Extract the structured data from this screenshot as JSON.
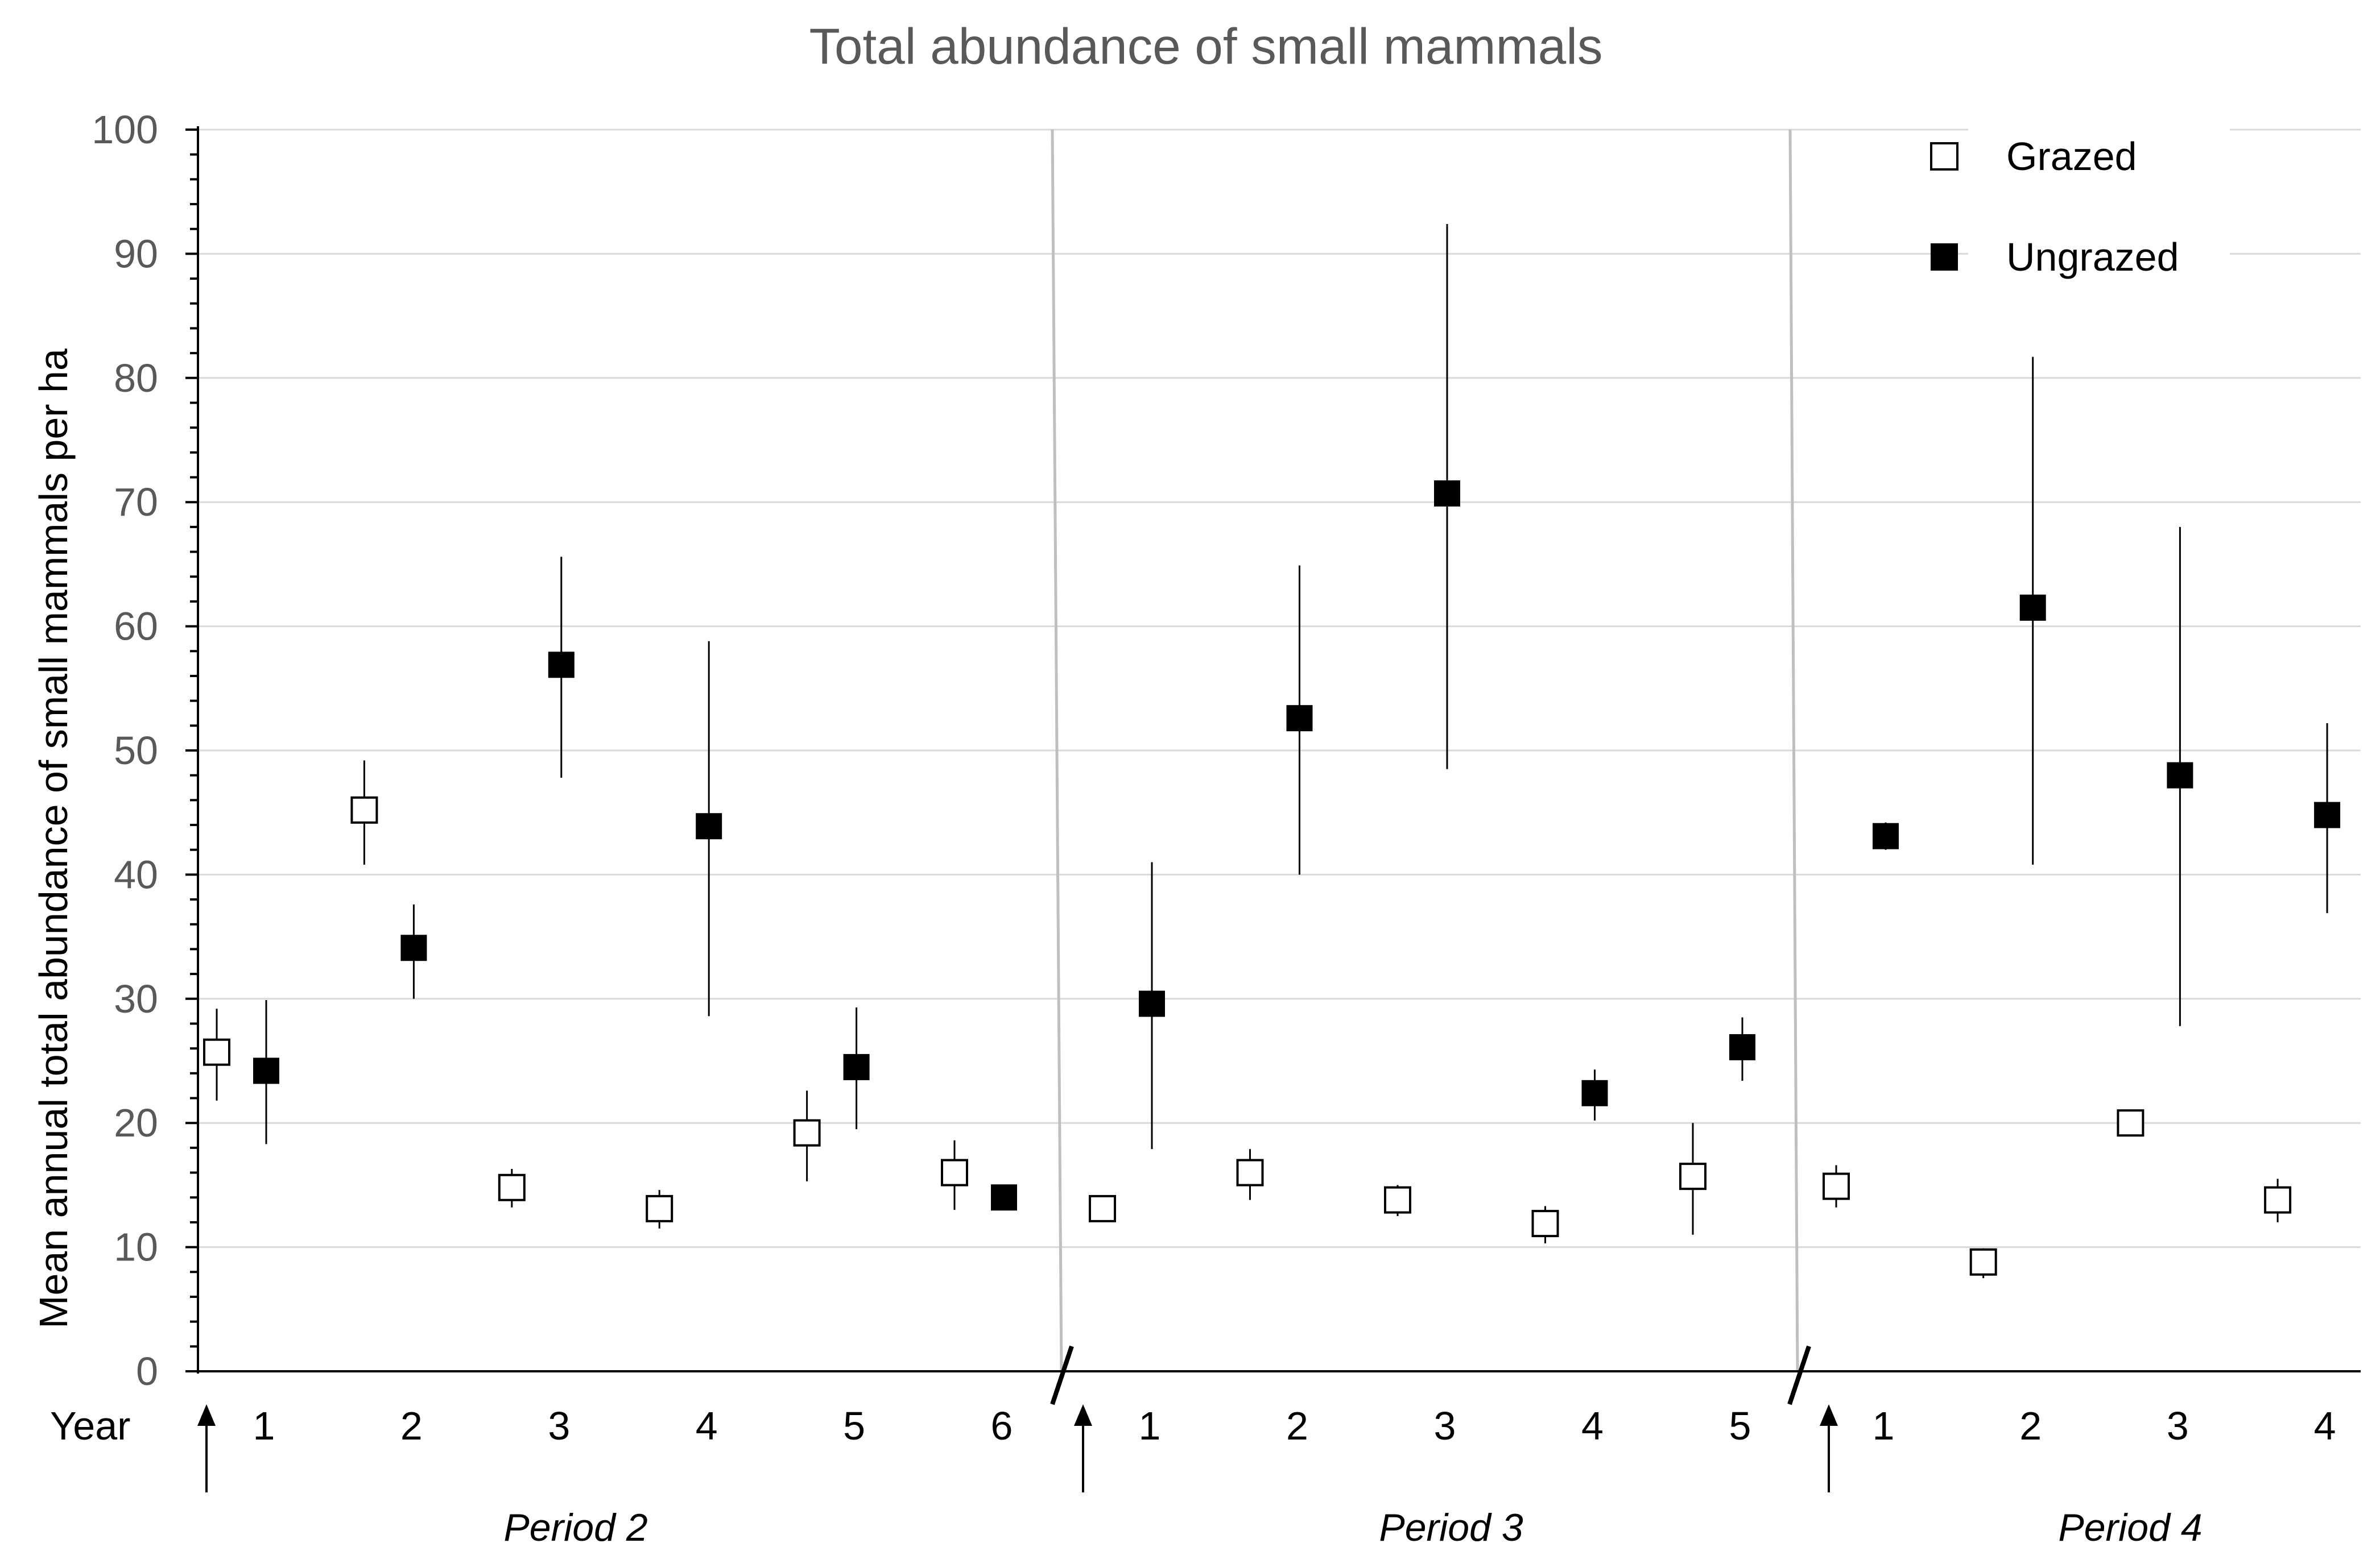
{
  "chart_data": {
    "type": "scatter",
    "title": "Total abundance of small mammals",
    "ylabel": "Mean annual total abundance of small mammals per ha",
    "xlabel": "",
    "year_caption": "Year",
    "ylim": [
      0,
      100
    ],
    "yticks": [
      0,
      10,
      20,
      30,
      40,
      50,
      60,
      70,
      80,
      90,
      100
    ],
    "grid": true,
    "legend_position": "top-right",
    "colors": {
      "grazed_fill": "#ffffff",
      "ungrazed_fill": "#000000",
      "gridline": "#d9d9d9",
      "divider": "#bfbfbf"
    },
    "periods": [
      {
        "label": "Period 2",
        "years": [
          "1",
          "2",
          "3",
          "4",
          "5",
          "6"
        ]
      },
      {
        "label": "Period 3",
        "years": [
          "1",
          "2",
          "3",
          "4",
          "5"
        ]
      },
      {
        "label": "Period 4",
        "years": [
          "1",
          "2",
          "3",
          "4"
        ]
      }
    ],
    "series": [
      {
        "name": "Grazed",
        "marker": "open-square",
        "points": [
          {
            "period": 0,
            "year": 1,
            "y": 25.7,
            "low": 21.8,
            "high": 29.2
          },
          {
            "period": 0,
            "year": 2,
            "y": 45.2,
            "low": 40.8,
            "high": 49.2
          },
          {
            "period": 0,
            "year": 3,
            "y": 14.8,
            "low": 13.2,
            "high": 16.3
          },
          {
            "period": 0,
            "year": 4,
            "y": 13.1,
            "low": 11.5,
            "high": 14.6
          },
          {
            "period": 0,
            "year": 5,
            "y": 19.2,
            "low": 15.3,
            "high": 22.6
          },
          {
            "period": 0,
            "year": 6,
            "y": 16.0,
            "low": 13.0,
            "high": 18.6
          },
          {
            "period": 1,
            "year": 1,
            "y": 13.1,
            "low": 12.4,
            "high": 13.8
          },
          {
            "period": 1,
            "year": 2,
            "y": 16.0,
            "low": 13.8,
            "high": 17.9
          },
          {
            "period": 1,
            "year": 3,
            "y": 13.8,
            "low": 12.5,
            "high": 15.0
          },
          {
            "period": 1,
            "year": 4,
            "y": 11.9,
            "low": 10.3,
            "high": 13.3
          },
          {
            "period": 1,
            "year": 5,
            "y": 15.7,
            "low": 11.0,
            "high": 20.0
          },
          {
            "period": 2,
            "year": 1,
            "y": 14.9,
            "low": 13.2,
            "high": 16.6
          },
          {
            "period": 2,
            "year": 2,
            "y": 8.8,
            "low": 7.5,
            "high": 9.9
          },
          {
            "period": 2,
            "year": 3,
            "y": 20.0,
            "low": 19.4,
            "high": 20.6
          },
          {
            "period": 2,
            "year": 4,
            "y": 13.8,
            "low": 12.0,
            "high": 15.5
          }
        ]
      },
      {
        "name": "Ungrazed",
        "marker": "filled-square",
        "points": [
          {
            "period": 0,
            "year": 1,
            "y": 24.2,
            "low": 18.3,
            "high": 29.9
          },
          {
            "period": 0,
            "year": 2,
            "y": 34.1,
            "low": 30.0,
            "high": 37.6
          },
          {
            "period": 0,
            "year": 3,
            "y": 56.9,
            "low": 47.8,
            "high": 65.6
          },
          {
            "period": 0,
            "year": 4,
            "y": 43.9,
            "low": 28.6,
            "high": 58.8
          },
          {
            "period": 0,
            "year": 5,
            "y": 24.5,
            "low": 19.5,
            "high": 29.3
          },
          {
            "period": 0,
            "year": 6,
            "y": 14.0,
            "low": 13.5,
            "high": 14.5
          },
          {
            "period": 1,
            "year": 1,
            "y": 29.6,
            "low": 17.9,
            "high": 41.0
          },
          {
            "period": 1,
            "year": 2,
            "y": 52.6,
            "low": 40.0,
            "high": 64.9
          },
          {
            "period": 1,
            "year": 3,
            "y": 70.7,
            "low": 48.5,
            "high": 92.4
          },
          {
            "period": 1,
            "year": 4,
            "y": 22.4,
            "low": 20.2,
            "high": 24.3
          },
          {
            "period": 1,
            "year": 5,
            "y": 26.1,
            "low": 23.4,
            "high": 28.5
          },
          {
            "period": 2,
            "year": 1,
            "y": 43.1,
            "low": 42.0,
            "high": 44.2
          },
          {
            "period": 2,
            "year": 2,
            "y": 61.5,
            "low": 40.8,
            "high": 81.7
          },
          {
            "period": 2,
            "year": 3,
            "y": 48.0,
            "low": 27.8,
            "high": 68.0
          },
          {
            "period": 2,
            "year": 4,
            "y": 44.8,
            "low": 36.9,
            "high": 52.2
          }
        ]
      }
    ]
  }
}
